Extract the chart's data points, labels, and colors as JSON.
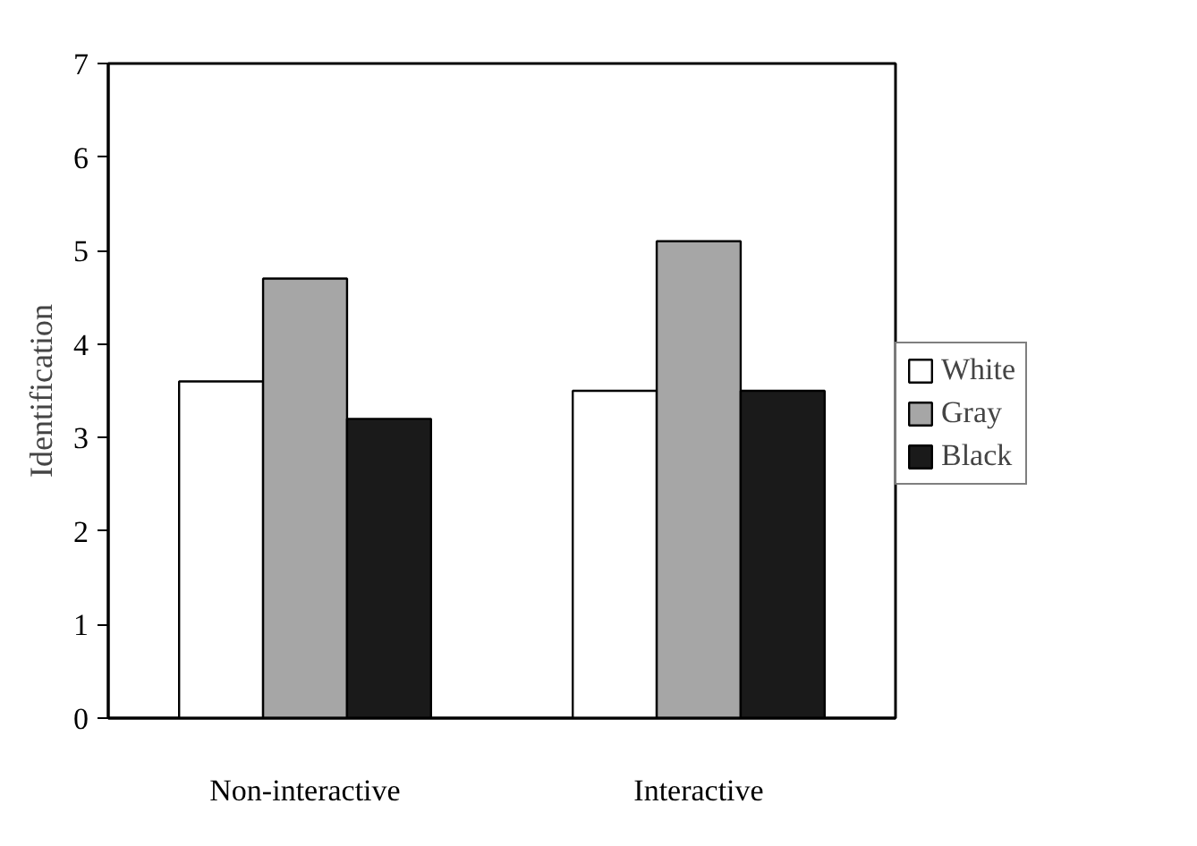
{
  "chart_data": {
    "type": "bar",
    "ylabel": "Identification",
    "categories": [
      "Non-interactive",
      "Interactive"
    ],
    "series": [
      {
        "name": "White",
        "color": "#ffffff",
        "values": [
          3.6,
          3.5
        ]
      },
      {
        "name": "Gray",
        "color": "#a6a6a6",
        "values": [
          4.7,
          5.1
        ]
      },
      {
        "name": "Black",
        "color": "#1a1a1a",
        "values": [
          3.2,
          3.5
        ]
      }
    ],
    "ylim": [
      0,
      7
    ],
    "yticks": [
      0,
      1,
      2,
      3,
      4,
      5,
      6,
      7
    ],
    "grid": false,
    "legend": "right"
  }
}
